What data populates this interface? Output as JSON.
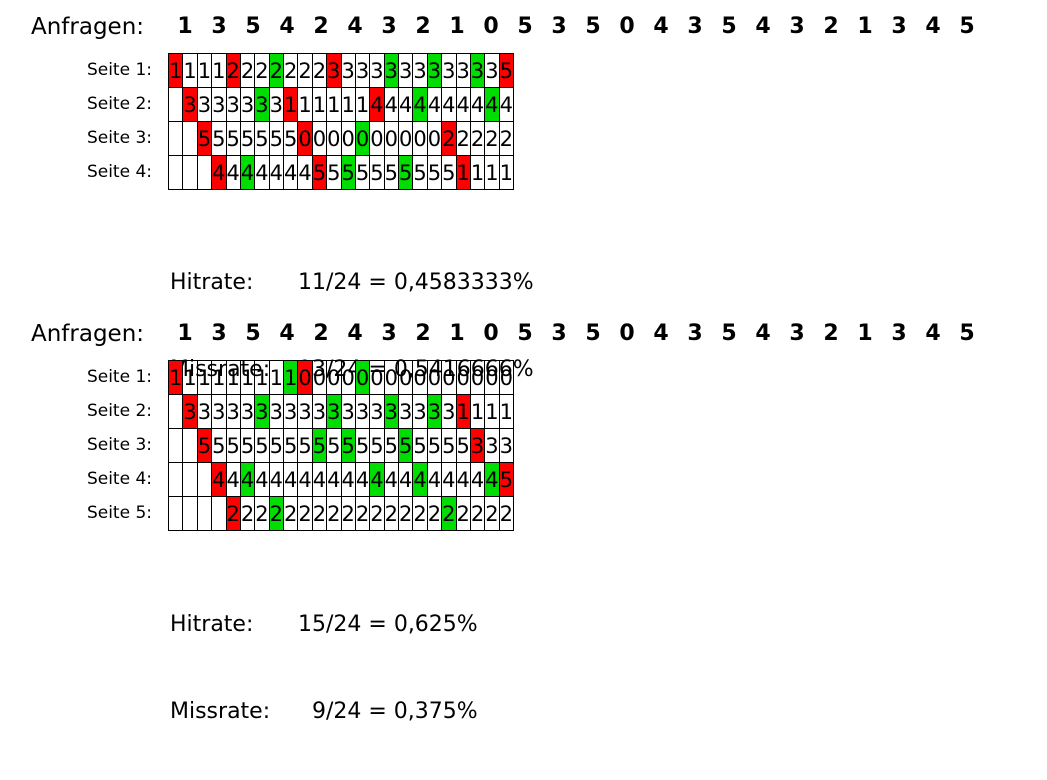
{
  "blocks": [
    {
      "requests_label": "Anfragen:",
      "requests": [
        "1",
        "3",
        "5",
        "4",
        "2",
        "4",
        "3",
        "2",
        "1",
        "0",
        "5",
        "3",
        "5",
        "0",
        "4",
        "3",
        "5",
        "4",
        "3",
        "2",
        "1",
        "3",
        "4",
        "5"
      ],
      "rows": [
        {
          "label": "Seite 1:",
          "cells": [
            "1",
            "1",
            "1",
            "1",
            "2",
            "2",
            "2",
            "2",
            "2",
            "2",
            "2",
            "3",
            "3",
            "3",
            "3",
            "3",
            "3",
            "3",
            "3",
            "3",
            "3",
            "3",
            "3",
            "5"
          ],
          "state": [
            "m",
            "",
            "",
            "",
            "m",
            "",
            "",
            "h",
            "",
            "",
            "",
            "m",
            "",
            "",
            "",
            "h",
            "",
            "",
            "h",
            "",
            "",
            "h",
            "",
            "m"
          ]
        },
        {
          "label": "Seite 2:",
          "cells": [
            "",
            "3",
            "3",
            "3",
            "3",
            "3",
            "3",
            "3",
            "1",
            "1",
            "1",
            "1",
            "1",
            "1",
            "4",
            "4",
            "4",
            "4",
            "4",
            "4",
            "4",
            "4",
            "4",
            "4"
          ],
          "state": [
            "",
            "m",
            "",
            "",
            "",
            "",
            "h",
            "",
            "m",
            "",
            "",
            "",
            "",
            "",
            "m",
            "",
            "",
            "h",
            "",
            "",
            "",
            "",
            "h",
            ""
          ]
        },
        {
          "label": "Seite 3:",
          "cells": [
            "",
            "",
            "5",
            "5",
            "5",
            "5",
            "5",
            "5",
            "5",
            "0",
            "0",
            "0",
            "0",
            "0",
            "0",
            "0",
            "0",
            "0",
            "0",
            "2",
            "2",
            "2",
            "2",
            "2"
          ],
          "state": [
            "",
            "",
            "m",
            "",
            "",
            "",
            "",
            "",
            "",
            "m",
            "",
            "",
            "",
            "h",
            "",
            "",
            "",
            "",
            "",
            "m",
            "",
            "",
            "",
            ""
          ]
        },
        {
          "label": "Seite 4:",
          "cells": [
            "",
            "",
            "",
            "4",
            "4",
            "4",
            "4",
            "4",
            "4",
            "4",
            "5",
            "5",
            "5",
            "5",
            "5",
            "5",
            "5",
            "5",
            "5",
            "5",
            "1",
            "1",
            "1",
            "1"
          ],
          "state": [
            "",
            "",
            "",
            "m",
            "",
            "h",
            "",
            "",
            "",
            "",
            "m",
            "",
            "h",
            "",
            "",
            "",
            "h",
            "",
            "",
            "",
            "m",
            "",
            "",
            ""
          ]
        }
      ],
      "hitrate_label": "Hitrate:",
      "hitrate_value": "11/24 = 0,4583333%",
      "missrate_label": "Missrate:",
      "missrate_value": "13/24 = 0,5416666%"
    },
    {
      "requests_label": "Anfragen:",
      "requests": [
        "1",
        "3",
        "5",
        "4",
        "2",
        "4",
        "3",
        "2",
        "1",
        "0",
        "5",
        "3",
        "5",
        "0",
        "4",
        "3",
        "5",
        "4",
        "3",
        "2",
        "1",
        "3",
        "4",
        "5"
      ],
      "rows": [
        {
          "label": "Seite 1:",
          "cells": [
            "1",
            "1",
            "1",
            "1",
            "1",
            "1",
            "1",
            "1",
            "1",
            "0",
            "0",
            "0",
            "0",
            "0",
            "0",
            "0",
            "0",
            "0",
            "0",
            "0",
            "0",
            "0",
            "0",
            "0"
          ],
          "state": [
            "m",
            "",
            "",
            "",
            "",
            "",
            "",
            "",
            "h",
            "m",
            "",
            "",
            "",
            "h",
            "",
            "",
            "",
            "",
            "",
            "",
            "",
            "",
            "",
            ""
          ]
        },
        {
          "label": "Seite 2:",
          "cells": [
            "",
            "3",
            "3",
            "3",
            "3",
            "3",
            "3",
            "3",
            "3",
            "3",
            "3",
            "3",
            "3",
            "3",
            "3",
            "3",
            "3",
            "3",
            "3",
            "3",
            "1",
            "1",
            "1",
            "1"
          ],
          "state": [
            "",
            "m",
            "",
            "",
            "",
            "",
            "h",
            "",
            "",
            "",
            "",
            "h",
            "",
            "",
            "",
            "h",
            "",
            "",
            "h",
            "",
            "m",
            "",
            "",
            ""
          ]
        },
        {
          "label": "Seite 3:",
          "cells": [
            "",
            "",
            "5",
            "5",
            "5",
            "5",
            "5",
            "5",
            "5",
            "5",
            "5",
            "5",
            "5",
            "5",
            "5",
            "5",
            "5",
            "5",
            "5",
            "5",
            "5",
            "3",
            "3",
            "3"
          ],
          "state": [
            "",
            "",
            "m",
            "",
            "",
            "",
            "",
            "",
            "",
            "",
            "h",
            "",
            "h",
            "",
            "",
            "",
            "h",
            "",
            "",
            "",
            "",
            "m",
            "",
            ""
          ]
        },
        {
          "label": "Seite 4:",
          "cells": [
            "",
            "",
            "",
            "4",
            "4",
            "4",
            "4",
            "4",
            "4",
            "4",
            "4",
            "4",
            "4",
            "4",
            "4",
            "4",
            "4",
            "4",
            "4",
            "4",
            "4",
            "4",
            "4",
            "5"
          ],
          "state": [
            "",
            "",
            "",
            "m",
            "",
            "h",
            "",
            "",
            "",
            "",
            "",
            "",
            "",
            "",
            "h",
            "",
            "",
            "h",
            "",
            "",
            "",
            "",
            "h",
            "m"
          ]
        },
        {
          "label": "Seite 5:",
          "cells": [
            "",
            "",
            "",
            "",
            "2",
            "2",
            "2",
            "2",
            "2",
            "2",
            "2",
            "2",
            "2",
            "2",
            "2",
            "2",
            "2",
            "2",
            "2",
            "2",
            "2",
            "2",
            "2",
            "2"
          ],
          "state": [
            "",
            "",
            "",
            "",
            "m",
            "",
            "",
            "h",
            "",
            "",
            "",
            "",
            "",
            "",
            "",
            "",
            "",
            "",
            "",
            "h",
            "",
            "",
            "",
            ""
          ]
        }
      ],
      "hitrate_label": "Hitrate:",
      "hitrate_value": "15/24 = 0,625%",
      "missrate_label": "Missrate:",
      "missrate_value": "  9/24 = 0,375%"
    }
  ],
  "colors": {
    "miss": "#ff0000",
    "hit": "#00dd00"
  }
}
